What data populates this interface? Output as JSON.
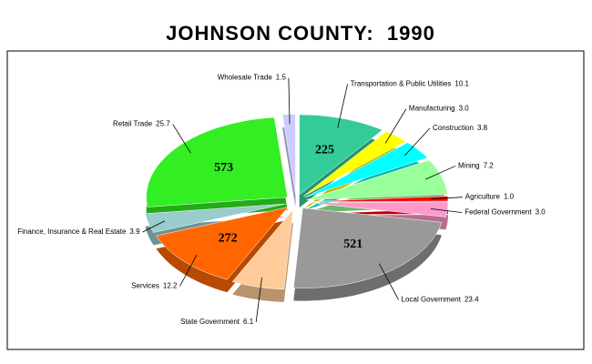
{
  "chart_data": {
    "type": "pie",
    "title": "JOHNSON COUNTY:  1990",
    "categories": [
      "Transportation & Public Utilities",
      "Manufacturing",
      "Construction",
      "Mining",
      "Agriculture",
      "Federal Government",
      "Local Government",
      "State Government",
      "Services",
      "Finance, Insurance & Real Estate",
      "Retail Trade",
      "Wholesale Trade"
    ],
    "values": [
      10.1,
      3.0,
      3.8,
      7.2,
      1.0,
      3.0,
      23.4,
      6.1,
      12.2,
      3.9,
      25.7,
      1.5
    ],
    "value_labels": [
      "10.1",
      "3.0",
      "3.8",
      "7.2",
      "1.0",
      "3.0",
      "23.4",
      "6.1",
      "12.2",
      "3.9",
      "25.7",
      "1.5"
    ],
    "counts": [
      225,
      null,
      null,
      null,
      null,
      null,
      521,
      null,
      272,
      null,
      573,
      null
    ],
    "colors": [
      "#33cc99",
      "#ffff00",
      "#00ffff",
      "#99ff99",
      "#ff0000",
      "#ff99cc",
      "#999999",
      "#ffcc99",
      "#ff6600",
      "#99cccc",
      "#33ee22",
      "#ccccff"
    ]
  }
}
